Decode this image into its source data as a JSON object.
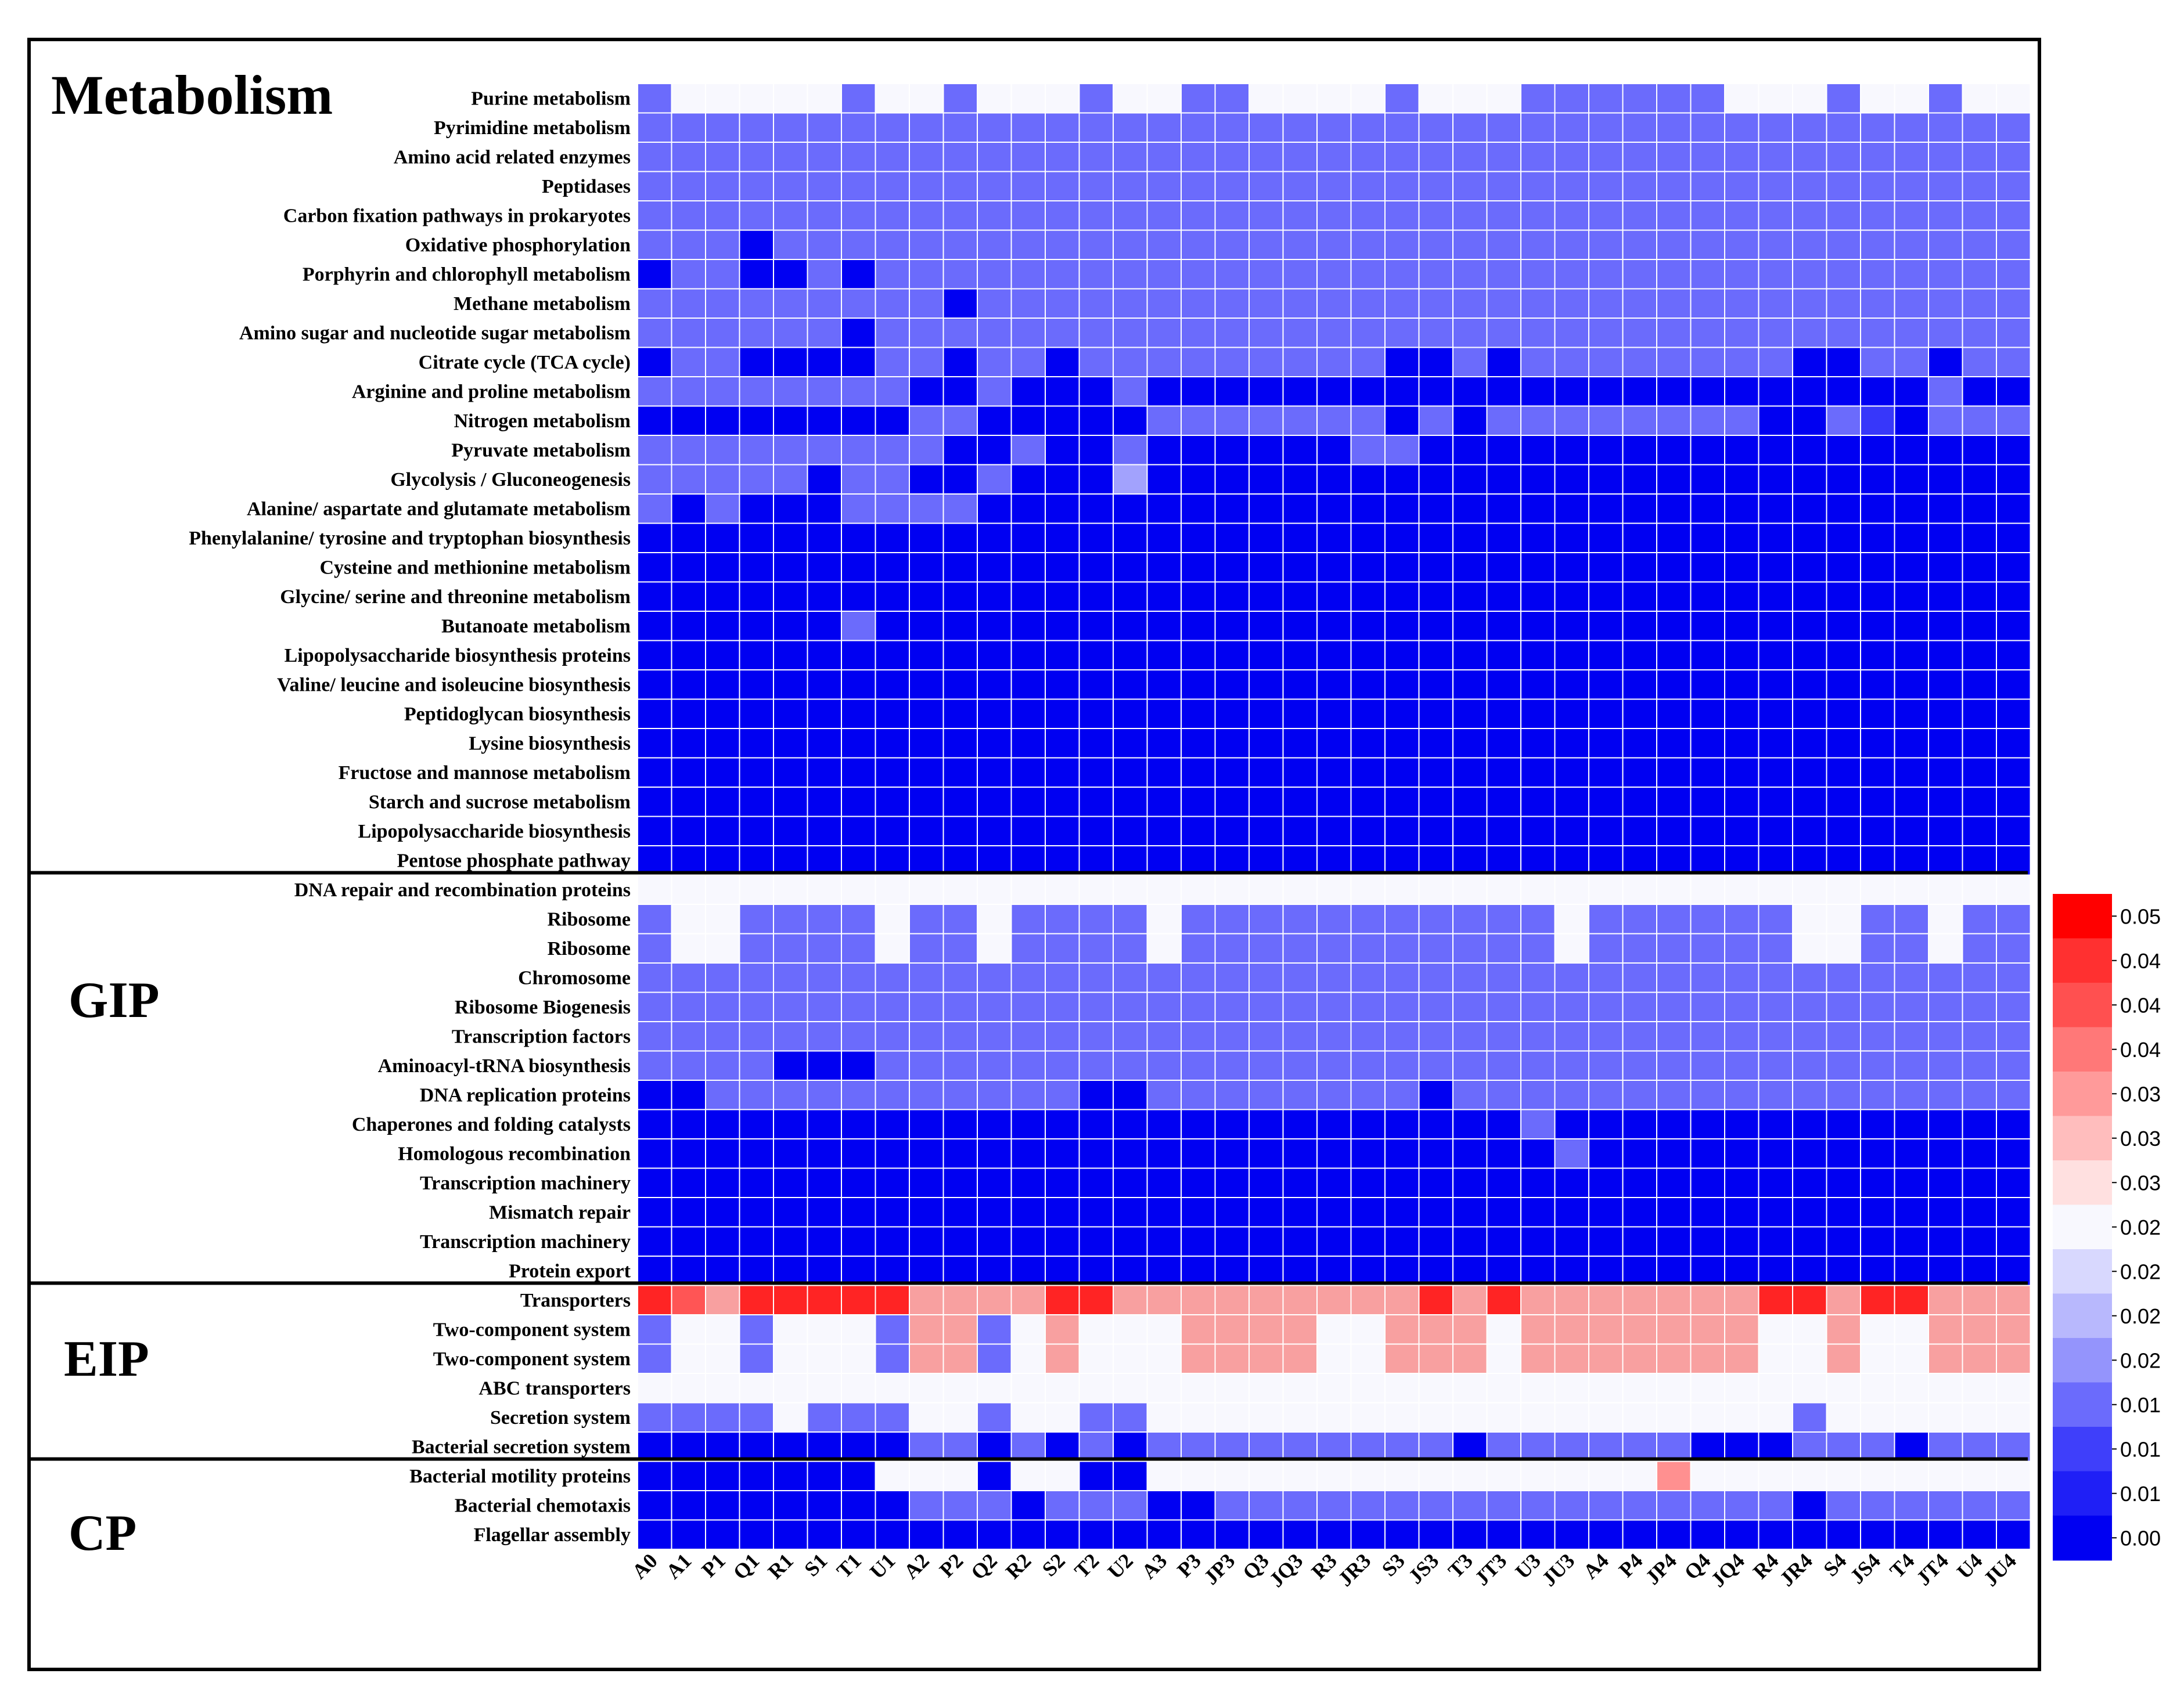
{
  "chart_data": {
    "type": "heatmap",
    "groups": [
      {
        "name": "Metabolism",
        "rows": [
          "Purine metabolism",
          "Pyrimidine metabolism",
          "Amino acid related enzymes",
          "Peptidases",
          "Carbon fixation pathways in prokaryotes",
          "Oxidative phosphorylation",
          "Porphyrin and chlorophyll metabolism",
          "Methane metabolism",
          "Amino sugar and nucleotide sugar metabolism",
          "Citrate cycle (TCA cycle)",
          "Arginine and proline metabolism",
          "Nitrogen metabolism",
          "Pyruvate metabolism",
          "Glycolysis / Gluconeogenesis",
          "Alanine/ aspartate and glutamate metabolism",
          "Phenylalanine/ tyrosine and tryptophan biosynthesis",
          "Cysteine and methionine metabolism",
          "Glycine/ serine and threonine metabolism",
          "Butanoate metabolism",
          "Lipopolysaccharide biosynthesis proteins",
          "Valine/ leucine and isoleucine biosynthesis",
          "Peptidoglycan biosynthesis",
          "Lysine biosynthesis",
          "Fructose and mannose metabolism",
          "Starch and sucrose metabolism",
          "Lipopolysaccharide biosynthesis",
          "Pentose phosphate pathway"
        ]
      },
      {
        "name": "GIP",
        "rows": [
          "DNA repair and recombination proteins",
          "Ribosome",
          "Ribosome",
          "Chromosome",
          "Ribosome Biogenesis",
          "Transcription factors",
          "Aminoacyl-tRNA biosynthesis",
          "DNA replication proteins",
          "Chaperones and folding catalysts",
          "Homologous recombination",
          "Transcription machinery",
          "Mismatch repair",
          "Transcription machinery",
          "Protein export"
        ]
      },
      {
        "name": "EIP",
        "rows": [
          "Transporters",
          "Two-component system",
          "Two-component system",
          "ABC transporters",
          "Secretion system",
          "Bacterial secretion system"
        ]
      },
      {
        "name": "CP",
        "rows": [
          "Bacterial motility proteins",
          "Bacterial chemotaxis",
          "Flagellar assembly"
        ]
      }
    ],
    "columns": [
      "A0",
      "A1",
      "P1",
      "Q1",
      "R1",
      "S1",
      "T1",
      "U1",
      "A2",
      "P2",
      "Q2",
      "R2",
      "S2",
      "T2",
      "U2",
      "A3",
      "P3",
      "JP3",
      "Q3",
      "JQ3",
      "R3",
      "JR3",
      "S3",
      "JS3",
      "T3",
      "JT3",
      "U3",
      "JU3",
      "A4",
      "P4",
      "JP4",
      "Q4",
      "JQ4",
      "R4",
      "JR4",
      "S4",
      "JS4",
      "T4",
      "JT4",
      "U4",
      "JU4"
    ],
    "color_levels": {
      "w": "#F8F8FE",
      "p": "#6B6BFC",
      "m": "#3737FA",
      "d": "#0000F2",
      "l": "#A2A2FD",
      "r": "#FF2424",
      "o": "#FF5555",
      "q": "#F8A0A0",
      "z": "#FF9090"
    },
    "rows_encoded": [
      "pwwwwwpwwpwwwpwwppwwwwpwwwppppppwwwpwwpww",
      "ppppppppppppppppppppppppppppppppppppppppp",
      "ppppppppppppppppppppppppppppppppppppppppp",
      "ppppppppppppppppppppppppppppppppppppppppp",
      "ppppppppppppppppppppppppppppppppppppppppp",
      "pppdppppppppppppppppppppppppppppppppppppp",
      "dppddpdpppppppppppppppppppppppppppppppppp",
      "pppppppppdppppppppppppppppppppppppppppppp",
      "ppppppdpppppppppppppppppppppppppppppppppp",
      "dppddddppdppdpppppppppddpdppppppppddppdpp",
      "ppppppppddpdddpdddddddddddddddddddddddpdd",
      "ddddddddppdddddpppppppdpdppppppppddpmdppp",
      "pppppppppddpddpddddddppdddddddddddddddddd",
      "pppppdppddpdddlddddddddddddddddddddddddd",
      "pdpdddppppdddddddddddddddddddddddddddddd",
      "ddddddddddddddddddddddddddddddddddddddddd",
      "ddddddddddddddddddddddddddddddddddddddddd",
      "ddddddddddddddddddddddddddddddddddddddddd",
      "ddddddpdddddddddddddddddddddddddddddddddd",
      "ddddddddddddddddddddddddddddddddddddddddd",
      "ddddddddddddddddddddddddddddddddddddddddd",
      "ddddddddddddddddddddddddddddddddddddddddd",
      "ddddddddddddddddddddddddddddddddddddddddd",
      "ddddddddddddddddddddddddddddddddddddddddd",
      "ddddddddddddddddddddddddddddddddddddddddd",
      "ddddddddddddddddddddddddddddddddddddddddd",
      "ddddddddddddddddddddddddddddddddddddddddd",
      "wwwwwwwwwwwwwwwwwwwwwwwwwwwwwwwwwwwwwwwww",
      "pwwppppwppwppppwpppppppppppwppppppwwppwpp",
      "pwwppppwppwppppwpppppppppppwppppppwwppwpp",
      "ppppppppppppppppppppppppppppppppppppppppp",
      "ppppppppppppppppppppppppppppppppppppppppp",
      "ppppppppppppppppppppppppppppppppppppppppp",
      "ppppdddppppppppppppppppppppppppppppppppp",
      "ddpppppppppppddppppppppdppppppppppppppppp",
      "ddddddddddddddddddddddddddpdddddddddddddd",
      "dddddddddddddddddddddddddddpddddddddddddd",
      "ddddddddddddddddddddddddddddddddddddddddd",
      "ddddddddddddddddddddddddddddddddddddddddd",
      "ddddddddddddddddddddddddddddddddddddddddd",
      "ddddddddddddddddddddddddddddddddddddddddd",
      "roqrrrrrqqqqrrqqqqqqqqqrqrqqqqqqqrrqrrqqq",
      "pwwpwwwpqqpwqwwwqqqqwwqqqwqqqqqqqwwqwwqqq",
      "pwwpwwwpqqpwqwwwqqqqwwqqqwqqqqqqqwwqwwqqq",
      "wwwwwwwwwwwwwwwwwwwwwwwwwwwwwwwwwwwwwwwww",
      "ppppwpppwwpwwppwwwwwwwwwwwwwwwwwwwpwwwwww",
      "ddddddddppdpdpdpppppppppdppppppdddpppdppp",
      "dddddddwwwdwwddwwwwwwwwwwwwwwwzwwwwwwwwww",
      "ddddddddpppdpppddpppppppppppppppppdpppppp",
      "ddddddddddddddddddddddddddddddddddddddddd"
    ],
    "colorbar": {
      "ticks": [
        "0.05",
        "0.04",
        "0.04",
        "0.04",
        "0.03",
        "0.03",
        "0.03",
        "0.02",
        "0.02",
        "0.02",
        "0.02",
        "0.01",
        "0.01",
        "0.01",
        "0.00"
      ],
      "colors": [
        "#FF0000",
        "#FF3030",
        "#FF5050",
        "#FF7878",
        "#FF9A9A",
        "#FFBDBD",
        "#FFE0E0",
        "#F8F8FE",
        "#D8D8FE",
        "#B8B8FD",
        "#9494FC",
        "#6B6BFC",
        "#3F3FFA",
        "#1F1FF6",
        "#0000F2"
      ]
    }
  }
}
